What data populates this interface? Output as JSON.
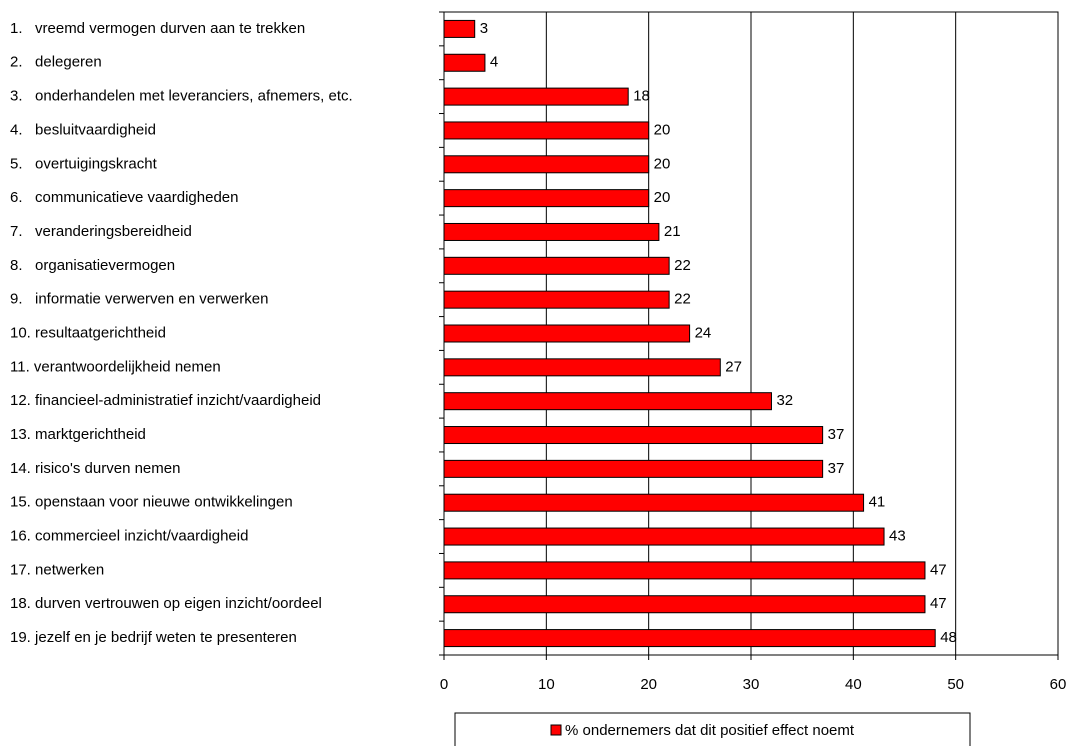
{
  "chart_data": {
    "type": "bar",
    "orientation": "horizontal",
    "categories": [
      "1.   vreemd vermogen durven aan te trekken",
      "2.   delegeren",
      "3.   onderhandelen met leveranciers, afnemers, etc.",
      "4.   besluitvaardigheid",
      "5.   overtuigingskracht",
      "6.   communicatieve vaardigheden",
      "7.   veranderingsbereidheid",
      "8.   organisatievermogen",
      "9.   informatie verwerven en verwerken",
      "10. resultaatgerichtheid",
      "11. verantwoordelijkheid nemen",
      "12. financieel-administratief inzicht/vaardigheid",
      "13. marktgerichtheid",
      "14. risico's durven nemen",
      "15. openstaan voor nieuwe ontwikkelingen",
      "16. commercieel inzicht/vaardigheid",
      "17. netwerken",
      "18. durven vertrouwen op eigen inzicht/oordeel",
      "19. jezelf en je bedrijf weten te presenteren"
    ],
    "series": [
      {
        "name": "% ondernemers dat dit positief effect noemt",
        "color": "#ff0000",
        "values": [
          3,
          4,
          18,
          20,
          20,
          20,
          21,
          22,
          22,
          24,
          27,
          32,
          37,
          37,
          41,
          43,
          47,
          47,
          48
        ]
      }
    ],
    "xlim": [
      0,
      60
    ],
    "xticks": [
      0,
      10,
      20,
      30,
      40,
      50,
      60
    ],
    "grid": true,
    "legend": "bottom"
  }
}
